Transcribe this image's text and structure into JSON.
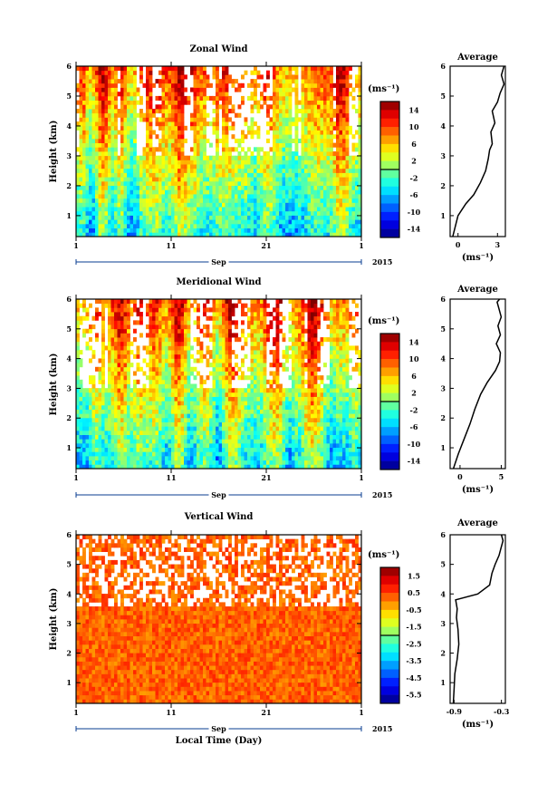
{
  "chart_data": [
    {
      "type": "heatmap",
      "title": "Zonal Wind",
      "ylabel": "Height (km)",
      "ylim": [
        0.3,
        6
      ],
      "yticks": [
        "1",
        "2",
        "3",
        "4",
        "5",
        "6"
      ],
      "xticks": [
        "1",
        "11",
        "21",
        "1"
      ],
      "xlabel": "",
      "month_label": "Sep",
      "year_label": "2015",
      "colorbar": {
        "unit": "(ms⁻¹)",
        "ticks": [
          "14",
          "10",
          "6",
          "2",
          "-2",
          "-6",
          "-10",
          "-14"
        ]
      },
      "average_profile": {
        "title": "Average",
        "xlabel": "(ms⁻¹)",
        "xticks": [
          "0",
          "3"
        ],
        "xlim": [
          -0.6,
          3.6
        ],
        "x": [
          -0.4,
          0.0,
          0.6,
          1.2,
          1.7,
          2.1,
          2.3,
          2.4,
          2.6,
          2.5,
          2.8,
          2.6,
          3.0,
          3.2,
          3.5,
          3.3,
          3.5
        ],
        "y": [
          0.3,
          1.0,
          1.4,
          1.7,
          2.1,
          2.5,
          2.9,
          3.2,
          3.4,
          3.8,
          4.1,
          4.5,
          4.8,
          5.1,
          5.4,
          5.7,
          6.0
        ]
      }
    },
    {
      "type": "heatmap",
      "title": "Meridional Wind",
      "ylabel": "Height (km)",
      "ylim": [
        0.3,
        6
      ],
      "yticks": [
        "1",
        "2",
        "3",
        "4",
        "5",
        "6"
      ],
      "xticks": [
        "1",
        "11",
        "21",
        "1"
      ],
      "xlabel": "",
      "month_label": "Sep",
      "year_label": "2015",
      "colorbar": {
        "unit": "(ms⁻¹)",
        "ticks": [
          "14",
          "10",
          "6",
          "2",
          "-2",
          "-6",
          "-10",
          "-14"
        ]
      },
      "average_profile": {
        "title": "Average",
        "xlabel": "(ms⁻¹)",
        "xticks": [
          "0",
          "5"
        ],
        "xlim": [
          -1.2,
          5.5
        ],
        "x": [
          -0.8,
          -0.2,
          0.5,
          1.2,
          1.8,
          2.5,
          3.3,
          4.3,
          4.8,
          4.9,
          4.4,
          4.9,
          4.6,
          5.0,
          4.7,
          4.5,
          4.8
        ],
        "y": [
          0.3,
          0.8,
          1.3,
          1.8,
          2.3,
          2.8,
          3.2,
          3.6,
          3.9,
          4.2,
          4.5,
          4.8,
          5.1,
          5.4,
          5.7,
          5.9,
          6.0
        ]
      }
    },
    {
      "type": "heatmap",
      "title": "Vertical Wind",
      "ylabel": "Height (km)",
      "ylim": [
        0.3,
        6
      ],
      "yticks": [
        "1",
        "2",
        "3",
        "4",
        "5",
        "6"
      ],
      "xticks": [
        "1",
        "11",
        "21",
        "1"
      ],
      "xlabel": "Local Time (Day)",
      "month_label": "Sep",
      "year_label": "2015",
      "colorbar": {
        "unit": "(ms⁻¹)",
        "ticks": [
          "1.5",
          "0.5",
          "-0.5",
          "-1.5",
          "-2.5",
          "-3.5",
          "-4.5",
          "-5.5"
        ]
      },
      "average_profile": {
        "title": "Average",
        "xlabel": "(ms⁻¹)",
        "xticks": [
          "-0.9",
          "-0.3"
        ],
        "xlim": [
          -0.95,
          -0.25
        ],
        "x": [
          -0.91,
          -0.9,
          -0.89,
          -0.86,
          -0.84,
          -0.85,
          -0.87,
          -0.86,
          -0.88,
          -0.6,
          -0.45,
          -0.42,
          -0.38,
          -0.33,
          -0.3,
          -0.28,
          -0.3
        ],
        "y": [
          0.3,
          0.8,
          1.3,
          1.8,
          2.3,
          2.8,
          3.2,
          3.5,
          3.8,
          4.0,
          4.3,
          4.7,
          5.0,
          5.3,
          5.6,
          5.8,
          6.0
        ]
      }
    }
  ]
}
